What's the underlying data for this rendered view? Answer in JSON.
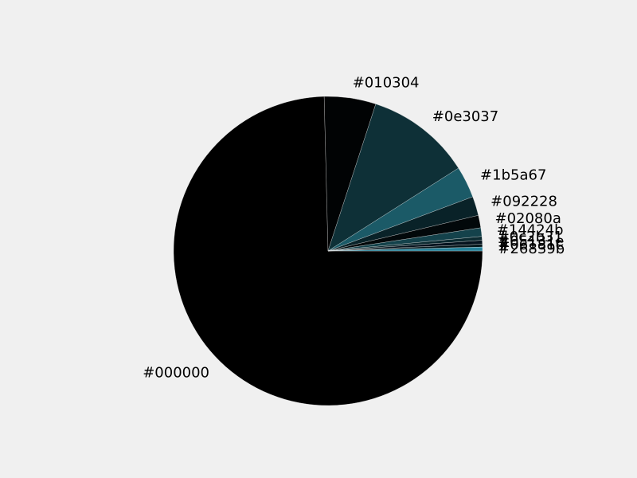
{
  "chart_data": {
    "type": "pie",
    "title": "",
    "start_angle_deg": 0,
    "direction": "clockwise",
    "labels": [
      "#000000",
      "#010304",
      "#0e3037",
      "#1b5a67",
      "#092228",
      "#02080a",
      "#14424b",
      "#0c2b31",
      "#05131e",
      "#06181c",
      "#26839b"
    ],
    "colors": [
      "#000000",
      "#010304",
      "#0e3037",
      "#1b5a67",
      "#092228",
      "#02080a",
      "#14424b",
      "#0c2b31",
      "#05131e",
      "#06181c",
      "#26839b"
    ],
    "values": [
      74.6,
      5.4,
      11.0,
      3.3,
      2.0,
      1.3,
      0.9,
      0.4,
      0.4,
      0.3,
      0.4
    ]
  }
}
